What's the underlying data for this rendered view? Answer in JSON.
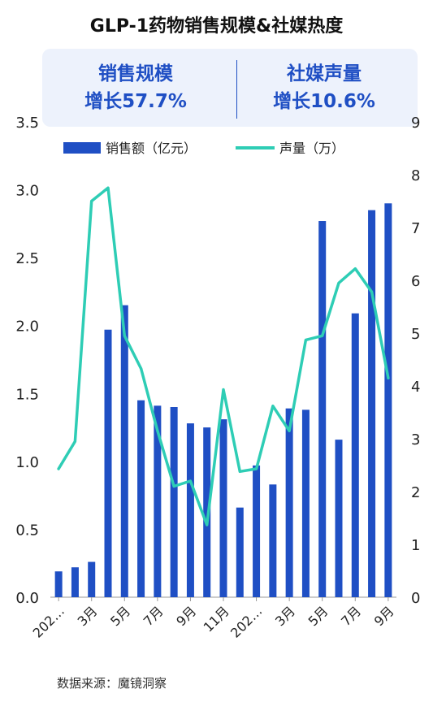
{
  "title": "GLP-1药物销售规模&社媒热度",
  "kpi": {
    "left": {
      "label": "销售规模",
      "value": "增长57.7%"
    },
    "right": {
      "label": "社媒声量",
      "value": "增长10.6%"
    }
  },
  "source": "数据来源：魔镜洞察",
  "colors": {
    "bar": "#1f4fc4",
    "line": "#2ecdb5",
    "kpi": "#1f4fc4"
  },
  "chart_data": {
    "type": "bar",
    "legend_position": "top-center",
    "grid": false,
    "x_tick_labels": [
      "202…",
      "3月",
      "5月",
      "7月",
      "9月",
      "11月",
      "202…",
      "3月",
      "5月",
      "7月",
      "9月"
    ],
    "y_left": {
      "ylim": [
        0,
        3.5
      ],
      "ticks": [
        "0.0",
        "0.5",
        "1.0",
        "1.5",
        "2.0",
        "2.5",
        "3.0",
        "3.5"
      ]
    },
    "y_right": {
      "ylim": [
        0,
        9
      ],
      "ticks": [
        "0",
        "1",
        "2",
        "3",
        "4",
        "5",
        "6",
        "7",
        "8",
        "9"
      ]
    },
    "series": [
      {
        "name": "销售额（亿元）",
        "type": "bar",
        "axis": "left",
        "values": [
          0.19,
          0.22,
          0.26,
          1.97,
          2.15,
          1.45,
          1.41,
          1.4,
          1.28,
          1.25,
          1.31,
          0.66,
          0.97,
          0.83,
          1.39,
          1.38,
          2.77,
          1.16,
          2.09,
          2.85,
          2.9
        ]
      },
      {
        "name": "声量（万）",
        "type": "line",
        "axis": "right",
        "values": [
          2.43,
          2.95,
          7.5,
          7.75,
          4.95,
          4.33,
          3.15,
          2.1,
          2.2,
          1.37,
          3.93,
          2.38,
          2.43,
          3.62,
          3.15,
          4.87,
          4.95,
          5.95,
          6.22,
          5.78,
          4.15
        ]
      }
    ]
  }
}
